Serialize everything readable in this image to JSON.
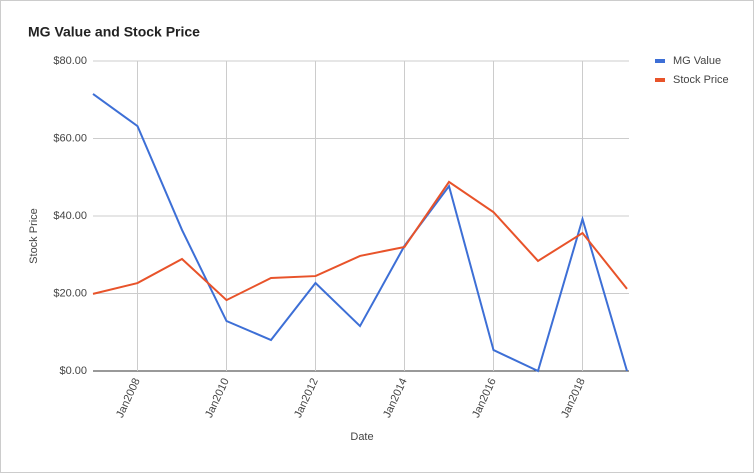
{
  "chart_data": {
    "type": "line",
    "title": "MG Value and Stock Price",
    "x_label": "Date",
    "y_label": "Stock Price",
    "categories": [
      null,
      "Jan2008",
      null,
      "Jan2010",
      null,
      "Jan2012",
      null,
      "Jan2014",
      null,
      "Jan2016",
      null,
      "Jan2018",
      null
    ],
    "series": [
      {
        "name": "MG Value",
        "color": "#3d6fd6",
        "values": [
          71.5,
          63.2,
          36.4,
          12.9,
          8.0,
          22.7,
          11.6,
          32.3,
          47.7,
          5.4,
          0,
          39.2,
          0
        ]
      },
      {
        "name": "Stock Price",
        "color": "#e8532a",
        "values": [
          19.9,
          22.7,
          28.9,
          18.3,
          24.0,
          24.5,
          29.7,
          32.0,
          48.8,
          41.0,
          28.4,
          35.6,
          21.2
        ]
      }
    ],
    "ylim": [
      0,
      80
    ],
    "yticks": [
      {
        "value": 0,
        "label": "$0.00"
      },
      {
        "value": 20,
        "label": "$20.00"
      },
      {
        "value": 40,
        "label": "$40.00"
      },
      {
        "value": 60,
        "label": "$60.00"
      },
      {
        "value": 80,
        "label": "$80.00"
      }
    ],
    "grid": true,
    "legend": "right"
  }
}
